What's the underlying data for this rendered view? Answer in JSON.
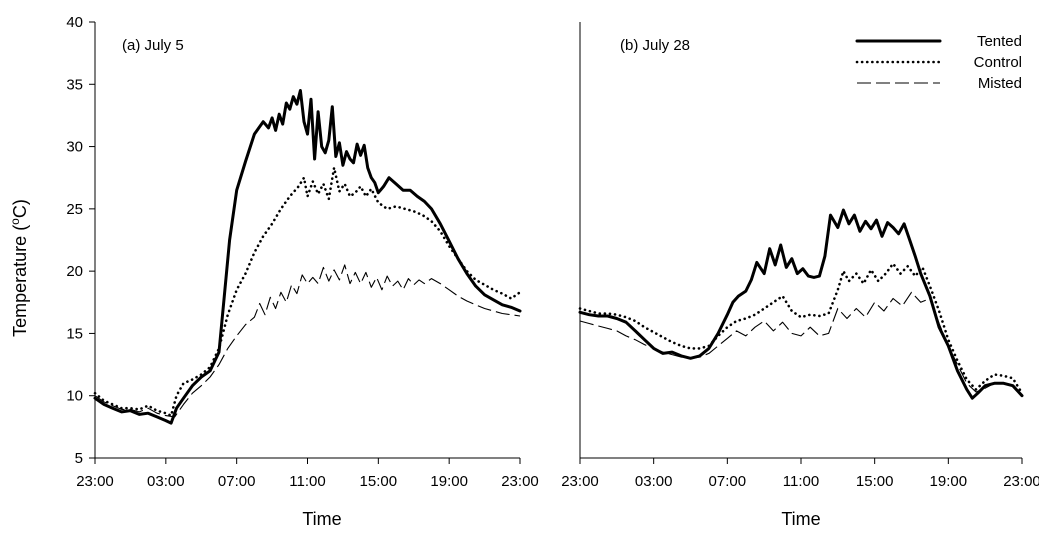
{
  "chart_data": [
    {
      "type": "line",
      "panel_label": "(a) July 5",
      "xlabel": "Time",
      "ylabel": "Temperature (°C)",
      "ylabel_parts": {
        "before": "Temperature (",
        "superscript": "o",
        "after": "C)"
      },
      "ylim": [
        5,
        40
      ],
      "yticks": [
        5,
        10,
        15,
        20,
        25,
        30,
        35,
        40
      ],
      "xticks": [
        "23:00",
        "03:00",
        "07:00",
        "11:00",
        "15:00",
        "19:00",
        "23:00"
      ],
      "x_unit": "hours since 23:00 (July 4)",
      "xlim": [
        0,
        24
      ],
      "grid": false,
      "series": [
        {
          "name": "Tented",
          "style": "solid",
          "x": [
            0.0,
            0.5,
            1.0,
            1.5,
            2.0,
            2.5,
            3.0,
            3.5,
            4.0,
            4.3,
            4.6,
            5.0,
            5.5,
            6.0,
            6.5,
            7.0,
            7.3,
            7.6,
            8.0,
            8.5,
            9.0,
            9.5,
            9.8,
            10.0,
            10.2,
            10.4,
            10.6,
            10.8,
            11.0,
            11.2,
            11.4,
            11.6,
            11.8,
            12.0,
            12.2,
            12.4,
            12.6,
            12.8,
            13.0,
            13.2,
            13.4,
            13.6,
            13.8,
            14.0,
            14.2,
            14.4,
            14.6,
            14.8,
            15.0,
            15.2,
            15.4,
            15.6,
            15.8,
            16.0,
            16.3,
            16.6,
            17.0,
            17.4,
            17.8,
            18.2,
            18.6,
            19.0,
            19.5,
            20.0,
            20.5,
            21.0,
            21.5,
            22.0,
            22.5,
            23.0,
            23.5,
            24.0
          ],
          "y": [
            9.8,
            9.3,
            9.0,
            8.7,
            8.8,
            8.5,
            8.6,
            8.3,
            8.0,
            7.8,
            9.0,
            9.8,
            10.8,
            11.5,
            12.0,
            13.5,
            18.0,
            22.5,
            26.5,
            28.8,
            31.0,
            32.0,
            31.5,
            32.3,
            31.3,
            32.6,
            31.8,
            33.5,
            33.0,
            34.0,
            33.4,
            34.5,
            32.0,
            31.0,
            33.8,
            29.0,
            32.8,
            30.0,
            29.5,
            30.5,
            33.2,
            29.2,
            30.3,
            28.5,
            29.6,
            29.0,
            28.7,
            30.2,
            29.3,
            30.1,
            28.3,
            27.5,
            27.1,
            26.3,
            26.8,
            27.5,
            27.0,
            26.5,
            26.5,
            26.0,
            25.6,
            25.0,
            23.8,
            22.4,
            21.0,
            19.8,
            18.8,
            18.1,
            17.7,
            17.3,
            17.1,
            16.8
          ]
        },
        {
          "name": "Control",
          "style": "dotted",
          "x": [
            0.0,
            0.5,
            1.0,
            1.5,
            2.0,
            2.5,
            3.0,
            3.5,
            4.0,
            4.3,
            4.6,
            5.0,
            5.5,
            6.0,
            6.5,
            7.0,
            7.5,
            8.0,
            8.5,
            9.0,
            9.5,
            10.0,
            10.5,
            11.0,
            11.5,
            11.8,
            12.0,
            12.3,
            12.6,
            12.9,
            13.2,
            13.5,
            13.8,
            14.1,
            14.4,
            14.7,
            15.0,
            15.3,
            15.6,
            16.0,
            16.5,
            17.0,
            17.5,
            18.0,
            18.5,
            19.0,
            19.5,
            20.0,
            20.5,
            21.0,
            21.5,
            22.0,
            22.5,
            23.0,
            23.5,
            24.0
          ],
          "y": [
            10.2,
            9.6,
            9.3,
            9.0,
            9.0,
            8.9,
            9.2,
            8.8,
            8.6,
            8.4,
            10.0,
            11.0,
            11.3,
            11.7,
            12.3,
            13.8,
            16.5,
            18.5,
            19.8,
            21.5,
            22.8,
            23.8,
            25.0,
            26.0,
            26.8,
            27.5,
            26.0,
            27.2,
            26.2,
            27.0,
            25.8,
            28.3,
            26.4,
            27.0,
            26.0,
            26.3,
            26.8,
            26.0,
            26.6,
            25.5,
            25.0,
            25.2,
            25.0,
            24.8,
            24.5,
            24.0,
            23.2,
            22.0,
            21.0,
            20.0,
            19.3,
            18.9,
            18.5,
            18.2,
            17.8,
            18.3
          ]
        },
        {
          "name": "Misted",
          "style": "dashed",
          "x": [
            0.0,
            0.5,
            1.0,
            1.5,
            2.0,
            2.5,
            3.0,
            3.5,
            4.0,
            4.5,
            5.0,
            5.5,
            6.0,
            6.5,
            7.0,
            7.5,
            8.0,
            8.5,
            9.0,
            9.3,
            9.6,
            9.9,
            10.2,
            10.5,
            10.8,
            11.1,
            11.4,
            11.7,
            12.0,
            12.3,
            12.6,
            12.9,
            13.2,
            13.5,
            13.8,
            14.1,
            14.4,
            14.7,
            15.0,
            15.3,
            15.6,
            15.9,
            16.2,
            16.5,
            16.8,
            17.1,
            17.4,
            17.7,
            18.0,
            18.3,
            18.6,
            19.0,
            19.5,
            20.0,
            20.5,
            21.0,
            21.5,
            22.0,
            22.5,
            23.0,
            23.5,
            24.0
          ],
          "y": [
            10.0,
            9.5,
            9.2,
            8.9,
            8.9,
            8.7,
            9.0,
            8.6,
            8.4,
            8.3,
            9.3,
            10.2,
            10.8,
            11.5,
            12.5,
            13.8,
            14.8,
            15.7,
            16.3,
            17.4,
            16.5,
            17.9,
            17.0,
            18.3,
            17.5,
            18.9,
            18.2,
            19.7,
            19.0,
            19.5,
            19.0,
            20.3,
            19.2,
            20.1,
            19.3,
            20.5,
            19.0,
            19.9,
            19.0,
            19.9,
            18.7,
            19.5,
            18.5,
            19.6,
            18.8,
            19.2,
            18.5,
            19.4,
            18.9,
            19.3,
            19.0,
            19.4,
            19.0,
            18.5,
            18.0,
            17.6,
            17.3,
            17.0,
            16.8,
            16.6,
            16.5,
            16.4
          ]
        }
      ]
    },
    {
      "type": "line",
      "panel_label": "(b) July 28",
      "xlabel": "Time",
      "ylabel": "",
      "ylim": [
        5,
        40
      ],
      "xticks": [
        "23:00",
        "03:00",
        "07:00",
        "11:00",
        "15:00",
        "19:00",
        "23:00"
      ],
      "x_unit": "hours since 23:00 (July 27)",
      "xlim": [
        0,
        24
      ],
      "grid": false,
      "legend": "top-right",
      "series": [
        {
          "name": "Tented",
          "style": "solid",
          "x": [
            0.0,
            0.5,
            1.0,
            1.5,
            2.0,
            2.5,
            3.0,
            3.5,
            4.0,
            4.5,
            5.0,
            5.5,
            6.0,
            6.5,
            7.0,
            7.5,
            8.0,
            8.3,
            8.6,
            9.0,
            9.3,
            9.6,
            10.0,
            10.3,
            10.6,
            10.9,
            11.2,
            11.5,
            11.8,
            12.1,
            12.4,
            12.7,
            13.0,
            13.3,
            13.6,
            14.0,
            14.3,
            14.6,
            14.9,
            15.2,
            15.5,
            15.8,
            16.1,
            16.4,
            16.7,
            17.0,
            17.3,
            17.6,
            17.9,
            18.2,
            18.5,
            19.0,
            19.5,
            20.0,
            20.5,
            21.0,
            21.3,
            21.6,
            22.0,
            22.5,
            23.0,
            23.5,
            24.0
          ],
          "y": [
            16.7,
            16.5,
            16.4,
            16.4,
            16.2,
            15.9,
            15.2,
            14.5,
            13.8,
            13.4,
            13.5,
            13.2,
            13.0,
            13.2,
            13.8,
            15.0,
            16.5,
            17.5,
            18.0,
            18.4,
            19.3,
            20.7,
            19.8,
            21.8,
            20.5,
            22.1,
            20.3,
            21.0,
            19.8,
            20.2,
            19.6,
            19.5,
            19.6,
            21.2,
            24.5,
            23.5,
            24.9,
            23.8,
            24.5,
            23.2,
            24.0,
            23.4,
            24.1,
            22.8,
            23.9,
            23.5,
            23.0,
            23.8,
            22.5,
            21.2,
            19.8,
            18.0,
            15.5,
            14.0,
            12.0,
            10.5,
            9.8,
            10.2,
            10.8,
            11.0,
            11.0,
            10.8,
            10.0
          ]
        },
        {
          "name": "Control",
          "style": "dotted",
          "x": [
            0.0,
            0.5,
            1.0,
            1.5,
            2.0,
            2.5,
            3.0,
            3.5,
            4.0,
            4.5,
            5.0,
            5.5,
            6.0,
            6.5,
            7.0,
            7.5,
            8.0,
            8.5,
            9.0,
            9.5,
            10.0,
            10.5,
            11.0,
            11.5,
            12.0,
            12.5,
            13.0,
            13.5,
            14.0,
            14.3,
            14.6,
            15.0,
            15.4,
            15.8,
            16.2,
            16.6,
            17.0,
            17.4,
            17.8,
            18.2,
            18.6,
            19.0,
            19.5,
            20.0,
            20.5,
            21.0,
            21.5,
            22.0,
            22.5,
            23.0,
            23.5,
            24.0
          ],
          "y": [
            17.0,
            16.8,
            16.6,
            16.6,
            16.5,
            16.3,
            16.0,
            15.5,
            15.1,
            14.7,
            14.3,
            14.0,
            13.8,
            13.8,
            14.0,
            14.8,
            15.5,
            16.0,
            16.2,
            16.5,
            17.0,
            17.5,
            18.0,
            16.8,
            16.3,
            16.5,
            16.4,
            16.6,
            18.5,
            20.0,
            19.2,
            19.8,
            19.0,
            20.1,
            19.2,
            19.8,
            20.6,
            19.8,
            20.4,
            19.6,
            20.3,
            18.8,
            16.8,
            14.5,
            12.8,
            11.3,
            10.5,
            11.2,
            11.7,
            11.6,
            11.4,
            10.2
          ]
        },
        {
          "name": "Misted",
          "style": "dashed",
          "x": [
            0.0,
            0.5,
            1.0,
            1.5,
            2.0,
            2.5,
            3.0,
            3.5,
            4.0,
            4.5,
            5.0,
            5.5,
            6.0,
            6.5,
            7.0,
            7.5,
            8.0,
            8.5,
            9.0,
            9.5,
            10.0,
            10.5,
            11.0,
            11.5,
            12.0,
            12.5,
            13.0,
            13.5,
            14.0,
            14.5,
            15.0,
            15.5,
            16.0,
            16.5,
            17.0,
            17.5,
            18.0,
            18.5,
            19.0,
            19.5,
            20.0,
            20.5,
            21.0,
            21.5,
            22.0,
            22.5,
            23.0,
            23.5,
            24.0
          ],
          "y": [
            16.0,
            15.8,
            15.6,
            15.4,
            15.2,
            14.8,
            14.5,
            14.1,
            13.8,
            13.5,
            13.3,
            13.1,
            13.0,
            13.1,
            13.4,
            14.0,
            14.6,
            15.2,
            14.8,
            15.5,
            16.0,
            15.2,
            15.9,
            15.0,
            14.8,
            15.5,
            14.8,
            15.0,
            17.0,
            16.2,
            17.0,
            16.3,
            17.5,
            16.8,
            17.8,
            17.2,
            18.3,
            17.5,
            17.8,
            15.8,
            14.0,
            12.5,
            11.0,
            10.3,
            10.6,
            11.0,
            11.0,
            10.8,
            10.0
          ]
        }
      ]
    }
  ]
}
